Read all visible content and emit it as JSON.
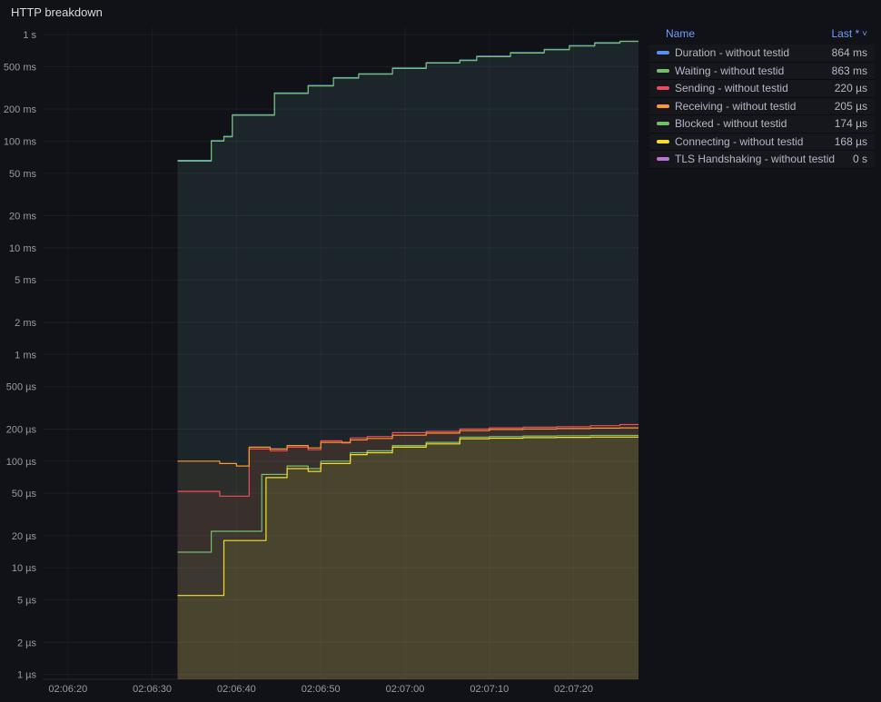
{
  "panel": {
    "title": "HTTP breakdown"
  },
  "legend": {
    "columns": {
      "name": "Name",
      "last": "Last *",
      "sort_caret": "˅"
    },
    "rows": [
      {
        "label": "Duration - without testid",
        "value": "864 ms",
        "color": "#5794F2"
      },
      {
        "label": "Waiting - without testid",
        "value": "863 ms",
        "color": "#73BF69"
      },
      {
        "label": "Sending - without testid",
        "value": "220 µs",
        "color": "#F2495C"
      },
      {
        "label": "Receiving - without testid",
        "value": "205 µs",
        "color": "#FF9830"
      },
      {
        "label": "Blocked - without testid",
        "value": "174 µs",
        "color": "#73BF69"
      },
      {
        "label": "Connecting - without testid",
        "value": "168 µs",
        "color": "#FADE2A"
      },
      {
        "label": "TLS Handshaking - without testid",
        "value": "0 s",
        "color": "#B877D9"
      }
    ]
  },
  "chart_data": {
    "type": "line",
    "line_style": "step-after",
    "title": "HTTP breakdown",
    "fill_opacity": 0.07,
    "grid": true,
    "legend_position": "right-table",
    "x_axis": {
      "unit": "time HH:MM:SS, numeric values are seconds after 02:06:00",
      "range": [
        17,
        87.7
      ],
      "ticks": [
        {
          "v": 20,
          "label": "02:06:20"
        },
        {
          "v": 30,
          "label": "02:06:30"
        },
        {
          "v": 40,
          "label": "02:06:40"
        },
        {
          "v": 50,
          "label": "02:06:50"
        },
        {
          "v": 60,
          "label": "02:07:00"
        },
        {
          "v": 70,
          "label": "02:07:10"
        },
        {
          "v": 80,
          "label": "02:07:20"
        }
      ]
    },
    "y_axis": {
      "scale": "log10",
      "unit": "ms",
      "range": [
        0.0009,
        1170
      ],
      "ticks": [
        {
          "v": 1000,
          "label": "1 s"
        },
        {
          "v": 500,
          "label": "500 ms"
        },
        {
          "v": 200,
          "label": "200 ms"
        },
        {
          "v": 100,
          "label": "100 ms"
        },
        {
          "v": 50,
          "label": "50 ms"
        },
        {
          "v": 20,
          "label": "20 ms"
        },
        {
          "v": 10,
          "label": "10 ms"
        },
        {
          "v": 5,
          "label": "5 ms"
        },
        {
          "v": 2,
          "label": "2 ms"
        },
        {
          "v": 1,
          "label": "1 ms"
        },
        {
          "v": 0.5,
          "label": "500 µs"
        },
        {
          "v": 0.2,
          "label": "200 µs"
        },
        {
          "v": 0.1,
          "label": "100 µs"
        },
        {
          "v": 0.05,
          "label": "50 µs"
        },
        {
          "v": 0.02,
          "label": "20 µs"
        },
        {
          "v": 0.01,
          "label": "10 µs"
        },
        {
          "v": 0.005,
          "label": "5 µs"
        },
        {
          "v": 0.002,
          "label": "2 µs"
        },
        {
          "v": 0.001,
          "label": "1 µs"
        }
      ]
    },
    "series": [
      {
        "name": "Duration - without testid",
        "color": "#5794F2",
        "last": "864 ms",
        "points": [
          [
            33,
            66
          ],
          [
            37,
            101
          ],
          [
            38.5,
            111
          ],
          [
            39.5,
            177
          ],
          [
            44.5,
            283
          ],
          [
            48.5,
            333
          ],
          [
            51.5,
            394
          ],
          [
            54.5,
            429
          ],
          [
            58.5,
            485
          ],
          [
            62.5,
            545
          ],
          [
            66.5,
            576
          ],
          [
            68.5,
            626
          ],
          [
            72.5,
            677
          ],
          [
            76.5,
            727
          ],
          [
            79.5,
            788
          ],
          [
            82.5,
            838
          ],
          [
            85.5,
            864
          ],
          [
            87.7,
            864
          ]
        ]
      },
      {
        "name": "Waiting - without testid",
        "color": "#73BF69",
        "last": "863 ms",
        "points": [
          [
            33,
            65
          ],
          [
            37,
            100
          ],
          [
            38.5,
            110
          ],
          [
            39.5,
            175
          ],
          [
            44.5,
            280
          ],
          [
            48.5,
            330
          ],
          [
            51.5,
            390
          ],
          [
            54.5,
            425
          ],
          [
            58.5,
            480
          ],
          [
            62.5,
            540
          ],
          [
            66.5,
            570
          ],
          [
            68.5,
            620
          ],
          [
            72.5,
            670
          ],
          [
            76.5,
            720
          ],
          [
            79.5,
            780
          ],
          [
            82.5,
            830
          ],
          [
            85.5,
            863
          ],
          [
            87.7,
            863
          ]
        ]
      },
      {
        "name": "Sending - without testid",
        "color": "#F2495C",
        "last": "220 µs",
        "points": [
          [
            33,
            0.052
          ],
          [
            38,
            0.047
          ],
          [
            41.5,
            0.13
          ],
          [
            44,
            0.125
          ],
          [
            46,
            0.135
          ],
          [
            48.5,
            0.128
          ],
          [
            50,
            0.155
          ],
          [
            52.5,
            0.148
          ],
          [
            53.5,
            0.165
          ],
          [
            55.5,
            0.17
          ],
          [
            58.5,
            0.185
          ],
          [
            62.5,
            0.19
          ],
          [
            66.5,
            0.2
          ],
          [
            70,
            0.205
          ],
          [
            74,
            0.208
          ],
          [
            78,
            0.21
          ],
          [
            82,
            0.215
          ],
          [
            85.5,
            0.22
          ],
          [
            87.7,
            0.22
          ]
        ]
      },
      {
        "name": "Receiving - without testid",
        "color": "#FF9830",
        "last": "205 µs",
        "points": [
          [
            33,
            0.1
          ],
          [
            38,
            0.095
          ],
          [
            40,
            0.09
          ],
          [
            41.5,
            0.135
          ],
          [
            44,
            0.13
          ],
          [
            46,
            0.14
          ],
          [
            48.5,
            0.133
          ],
          [
            50,
            0.15
          ],
          [
            53.5,
            0.158
          ],
          [
            55.5,
            0.163
          ],
          [
            58.5,
            0.175
          ],
          [
            62.5,
            0.183
          ],
          [
            66.5,
            0.193
          ],
          [
            70,
            0.198
          ],
          [
            74,
            0.2
          ],
          [
            78,
            0.202
          ],
          [
            82,
            0.204
          ],
          [
            85.5,
            0.205
          ],
          [
            87.7,
            0.205
          ]
        ]
      },
      {
        "name": "Blocked - without testid",
        "color": "#73BF69",
        "last": "174 µs",
        "points": [
          [
            33,
            0.014
          ],
          [
            37,
            0.022
          ],
          [
            43,
            0.075
          ],
          [
            46,
            0.09
          ],
          [
            48.5,
            0.085
          ],
          [
            50,
            0.1
          ],
          [
            53.5,
            0.12
          ],
          [
            55.5,
            0.125
          ],
          [
            58.5,
            0.14
          ],
          [
            62.5,
            0.15
          ],
          [
            66.5,
            0.168
          ],
          [
            70,
            0.17
          ],
          [
            74,
            0.172
          ],
          [
            78,
            0.173
          ],
          [
            82,
            0.174
          ],
          [
            87.7,
            0.174
          ]
        ]
      },
      {
        "name": "Connecting - without testid",
        "color": "#FADE2A",
        "last": "168 µs",
        "points": [
          [
            33,
            0.0055
          ],
          [
            38.5,
            0.018
          ],
          [
            43.5,
            0.07
          ],
          [
            46,
            0.085
          ],
          [
            48.5,
            0.08
          ],
          [
            50,
            0.095
          ],
          [
            53.5,
            0.115
          ],
          [
            55.5,
            0.12
          ],
          [
            58.5,
            0.135
          ],
          [
            62.5,
            0.145
          ],
          [
            66.5,
            0.162
          ],
          [
            70,
            0.164
          ],
          [
            74,
            0.166
          ],
          [
            78,
            0.167
          ],
          [
            82,
            0.168
          ],
          [
            87.7,
            0.168
          ]
        ]
      },
      {
        "name": "TLS Handshaking - without testid",
        "color": "#B877D9",
        "last": "0 s",
        "points": []
      }
    ]
  }
}
